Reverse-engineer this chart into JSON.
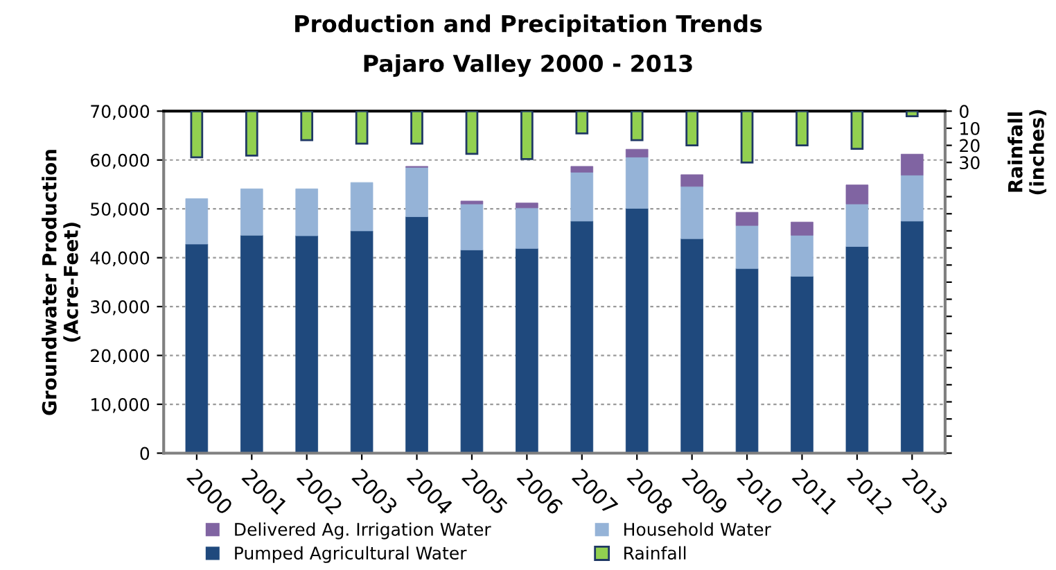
{
  "chart_data": {
    "type": "bar",
    "title": "Production and Precipitation Trends",
    "subtitle": "Pajaro Valley 2000 - 2013",
    "ylabel": "Groundwater Production\n(Acre-Feet)",
    "y2label": "Rainfall\n(inches)",
    "categories": [
      "2000",
      "2001",
      "2002",
      "2003",
      "2004",
      "2005",
      "2006",
      "2007",
      "2008",
      "2009",
      "2010",
      "2011",
      "2012",
      "2013"
    ],
    "stacked": true,
    "series": [
      {
        "name": "Pumped Agricultural Water",
        "color": "#1f497d",
        "values": [
          42800,
          44600,
          44500,
          45500,
          48400,
          41600,
          41900,
          47500,
          50100,
          43900,
          37800,
          36200,
          42300,
          47500
        ]
      },
      {
        "name": "Household Water",
        "color": "#95b3d7",
        "values": [
          9300,
          9500,
          9600,
          9900,
          10100,
          9400,
          8300,
          10000,
          10500,
          10700,
          8800,
          8400,
          8700,
          9400
        ]
      },
      {
        "name": "Delivered Ag. Irrigation Water",
        "color": "#8064a2",
        "values": [
          null,
          null,
          null,
          null,
          200,
          600,
          1000,
          1200,
          1600,
          2400,
          2700,
          2700,
          3900,
          4300
        ]
      },
      {
        "name": "Rainfall",
        "color": "#92d050",
        "axis": "y2",
        "values": [
          27,
          26,
          17,
          19,
          19,
          25,
          28,
          13,
          17,
          20,
          30,
          20,
          22,
          3
        ]
      }
    ],
    "ylim": [
      0,
      70000
    ],
    "yticks": [
      0,
      {
        "value": 10000,
        "label": "10,000"
      },
      {
        "value": 20000,
        "label": "20,000"
      },
      {
        "value": 30000,
        "label": "30,000"
      },
      {
        "value": 40000,
        "label": "40,000"
      },
      {
        "value": 50000,
        "label": "50,000"
      },
      {
        "value": 60000,
        "label": "60,000"
      },
      {
        "value": 70000,
        "label": "70,000"
      }
    ],
    "y2lim": [
      200,
      0
    ],
    "y2ticks": [
      0,
      10,
      20,
      30,
      {
        "value": 40,
        "label": null
      },
      {
        "value": 50,
        "label": null
      },
      {
        "value": 60,
        "label": null
      },
      {
        "value": 70,
        "label": null
      },
      {
        "value": 80,
        "label": null
      },
      {
        "value": 90,
        "label": null
      },
      {
        "value": 100,
        "label": null
      },
      {
        "value": 110,
        "label": null
      },
      {
        "value": 120,
        "label": null
      },
      {
        "value": 130,
        "label": null
      },
      {
        "value": 140,
        "label": null
      },
      {
        "value": 150,
        "label": null
      },
      {
        "value": 160,
        "label": null
      },
      {
        "value": 170,
        "label": null
      },
      {
        "value": 180,
        "label": null
      },
      {
        "value": 190,
        "label": null
      },
      {
        "value": 200,
        "label": null
      }
    ],
    "grid": "y",
    "legend": "bottom"
  }
}
